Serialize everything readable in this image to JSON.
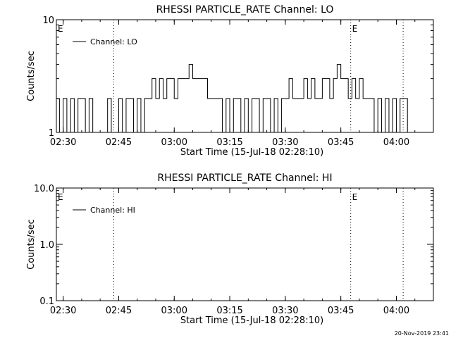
{
  "chart_data": [
    {
      "type": "line",
      "title": "RHESSI PARTICLE_RATE Channel: LO",
      "xlabel": "Start Time (15-Jul-18 02:28:10)",
      "ylabel": "Counts/sec",
      "yscale": "log",
      "xlim": [
        "02:28:10",
        "04:10:00"
      ],
      "ylim": [
        1,
        10
      ],
      "xticks": [
        "02:30",
        "02:45",
        "03:00",
        "03:15",
        "03:30",
        "03:45",
        "04:00"
      ],
      "yticks": [
        "1",
        "10"
      ],
      "legend": "Channel: LO",
      "legend_position": "top-left",
      "markers": [
        {
          "label": "E",
          "time": "02:28:10",
          "style": "none"
        },
        {
          "label": "",
          "time": "02:43:40",
          "style": "dotted"
        },
        {
          "label": "E",
          "time": "03:47:40",
          "style": "dotted"
        },
        {
          "label": "",
          "time": "04:01:50",
          "style": "dotted"
        }
      ],
      "series": [
        {
          "name": "Channel: LO",
          "color": "#000000",
          "x": [
            "02:28:10",
            "02:29:00",
            "02:30:00",
            "02:31:00",
            "02:32:00",
            "02:33:00",
            "02:34:00",
            "02:35:00",
            "02:36:00",
            "02:37:00",
            "02:38:00",
            "02:39:00",
            "02:40:00",
            "02:41:00",
            "02:42:00",
            "02:43:00",
            "02:44:00",
            "02:45:00",
            "02:46:00",
            "02:47:00",
            "02:48:00",
            "02:49:00",
            "02:50:00",
            "02:51:00",
            "02:52:00",
            "02:53:00",
            "02:54:00",
            "02:55:00",
            "02:56:00",
            "02:57:00",
            "02:58:00",
            "02:59:00",
            "03:00:00",
            "03:01:00",
            "03:02:00",
            "03:03:00",
            "03:04:00",
            "03:05:00",
            "03:06:00",
            "03:07:00",
            "03:08:00",
            "03:09:00",
            "03:10:00",
            "03:11:00",
            "03:12:00",
            "03:13:00",
            "03:14:00",
            "03:15:00",
            "03:16:00",
            "03:17:00",
            "03:18:00",
            "03:19:00",
            "03:20:00",
            "03:21:00",
            "03:22:00",
            "03:23:00",
            "03:24:00",
            "03:25:00",
            "03:26:00",
            "03:27:00",
            "03:28:00",
            "03:29:00",
            "03:30:00",
            "03:31:00",
            "03:32:00",
            "03:33:00",
            "03:34:00",
            "03:35:00",
            "03:36:00",
            "03:37:00",
            "03:38:00",
            "03:39:00",
            "03:40:00",
            "03:41:00",
            "03:42:00",
            "03:43:00",
            "03:44:00",
            "03:45:00",
            "03:46:00",
            "03:47:00",
            "03:48:00",
            "03:49:00",
            "03:50:00",
            "03:51:00",
            "03:52:00",
            "03:53:00",
            "03:54:00",
            "03:55:00",
            "03:56:00",
            "03:57:00",
            "03:58:00",
            "03:59:00",
            "04:00:00",
            "04:01:00",
            "04:02:00",
            "04:03:00"
          ],
          "y": [
            2,
            1,
            2,
            1,
            2,
            1,
            2,
            2,
            1,
            2,
            1,
            1,
            1,
            1,
            2,
            1,
            1,
            2,
            1,
            2,
            2,
            1,
            2,
            1,
            2,
            2,
            3,
            2,
            3,
            2,
            3,
            3,
            2,
            3,
            3,
            3,
            4,
            3,
            3,
            3,
            3,
            2,
            2,
            2,
            2,
            1,
            2,
            1,
            2,
            2,
            1,
            2,
            1,
            2,
            2,
            1,
            2,
            2,
            1,
            2,
            1,
            2,
            2,
            3,
            2,
            2,
            2,
            3,
            2,
            3,
            2,
            2,
            3,
            3,
            2,
            3,
            4,
            3,
            3,
            2,
            3,
            2,
            3,
            2,
            2,
            2,
            1,
            2,
            1,
            2,
            1,
            2,
            1,
            2,
            2,
            1
          ]
        }
      ]
    },
    {
      "type": "line",
      "title": "RHESSI PARTICLE_RATE Channel: HI",
      "xlabel": "Start Time (15-Jul-18 02:28:10)",
      "ylabel": "Counts/sec",
      "yscale": "log",
      "xlim": [
        "02:28:10",
        "04:10:00"
      ],
      "ylim": [
        0.1,
        10
      ],
      "xticks": [
        "02:30",
        "02:45",
        "03:00",
        "03:15",
        "03:30",
        "03:45",
        "04:00"
      ],
      "yticks": [
        "0.1",
        "1.0",
        "10.0"
      ],
      "legend": "Channel: HI",
      "legend_position": "top-left",
      "markers": [
        {
          "label": "E",
          "time": "02:28:10",
          "style": "none"
        },
        {
          "label": "",
          "time": "02:43:40",
          "style": "dotted"
        },
        {
          "label": "E",
          "time": "03:47:40",
          "style": "dotted"
        },
        {
          "label": "",
          "time": "04:01:50",
          "style": "dotted"
        }
      ],
      "series": [
        {
          "name": "Channel: HI",
          "color": "#000000",
          "x": [],
          "y": []
        }
      ]
    }
  ],
  "footer": {
    "timestamp": "20-Nov-2019 23:41"
  }
}
